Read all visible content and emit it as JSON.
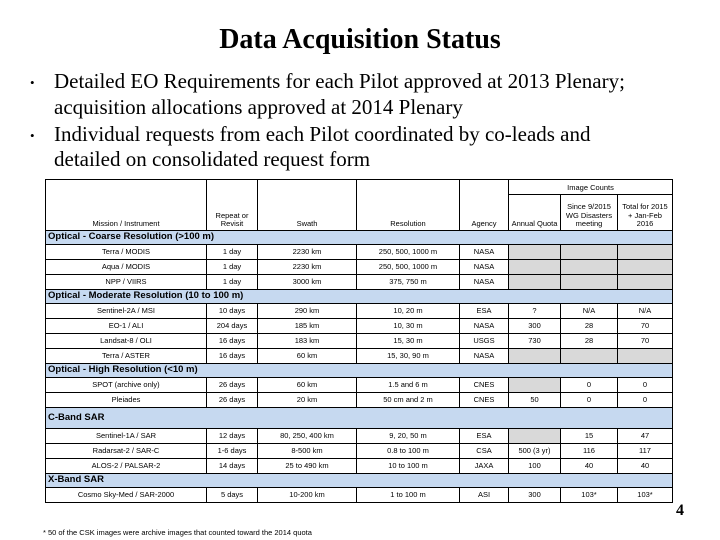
{
  "slide": {
    "title": "Data Acquisition Status",
    "bullet_marker": "•",
    "bullets": [
      "Detailed EO Requirements for each Pilot approved at 2013 Plenary; acquisition allocations approved at 2014 Plenary",
      "Individual requests from each Pilot coordinated by co-leads and detailed on consolidated request form"
    ],
    "footnote": "* 50 of the CSK images were archive images that counted toward the 2014 quota",
    "page_number": "4"
  },
  "table": {
    "group_header": "Image Counts",
    "columns": [
      "Mission / Instrument",
      "Repeat or Revisit",
      "Swath",
      "Resolution",
      "Agency",
      "Annual Quota",
      "Since 9/2015 WG Disasters meeting",
      "Total for 2015 + Jan-Feb 2016"
    ],
    "sections": [
      {
        "label": "Optical - Coarse Resolution (>100 m)",
        "rows": [
          [
            "Terra / MODIS",
            "1 day",
            "2230 km",
            "250, 500, 1000 m",
            "NASA",
            null,
            null,
            null
          ],
          [
            "Aqua / MODIS",
            "1 day",
            "2230 km",
            "250, 500, 1000 m",
            "NASA",
            null,
            null,
            null
          ],
          [
            "NPP / VIIRS",
            "1 day",
            "3000 km",
            "375, 750 m",
            "NASA",
            null,
            null,
            null
          ]
        ]
      },
      {
        "label": "Optical - Moderate Resolution (10 to 100 m)",
        "rows": [
          [
            "Sentinel-2A / MSI",
            "10 days",
            "290 km",
            "10, 20 m",
            "ESA",
            "?",
            "N/A",
            "N/A"
          ],
          [
            "EO-1 / ALI",
            "204 days",
            "185 km",
            "10, 30 m",
            "NASA",
            "300",
            "28",
            "70"
          ],
          [
            "Landsat-8 / OLI",
            "16 days",
            "183 km",
            "15, 30 m",
            "USGS",
            "730",
            "28",
            "70"
          ],
          [
            "Terra / ASTER",
            "16 days",
            "60 km",
            "15, 30, 90 m",
            "NASA",
            null,
            null,
            null
          ]
        ]
      },
      {
        "label": "Optical - High Resolution (<10 m)",
        "rows": [
          [
            "SPOT (archive only)",
            "26 days",
            "60 km",
            "1.5 and 6 m",
            "CNES",
            null,
            "0",
            "0"
          ],
          [
            "Pleiades",
            "26 days",
            "20 km",
            "50 cm and 2 m",
            "CNES",
            "50",
            "0",
            "0"
          ]
        ]
      },
      {
        "label": "C-Band SAR",
        "rows": [
          [
            "Sentinel-1A / SAR",
            "12 days",
            "80, 250, 400 km",
            "9, 20, 50 m",
            "ESA",
            null,
            "15",
            "47"
          ],
          [
            "Radarsat-2 / SAR-C",
            "1-6 days",
            "8-500 km",
            "0.8 to 100 m",
            "CSA",
            "500 (3 yr)",
            "116",
            "117"
          ],
          [
            "ALOS-2 / PALSAR-2",
            "14 days",
            "25 to 490 km",
            "10 to 100 m",
            "JAXA",
            "100",
            "40",
            "40"
          ]
        ]
      },
      {
        "label": "X-Band SAR",
        "rows": [
          [
            "Cosmo Sky-Med / SAR-2000",
            "5 days",
            "10-200 km",
            "1 to 100 m",
            "ASI",
            "300",
            "103*",
            "103*"
          ]
        ]
      }
    ]
  },
  "colors": {
    "section_row_bg": "#c6d9f0",
    "empty_cell_bg": "#d9d9d9",
    "border": "#000000",
    "text": "#000000",
    "background": "#ffffff"
  }
}
